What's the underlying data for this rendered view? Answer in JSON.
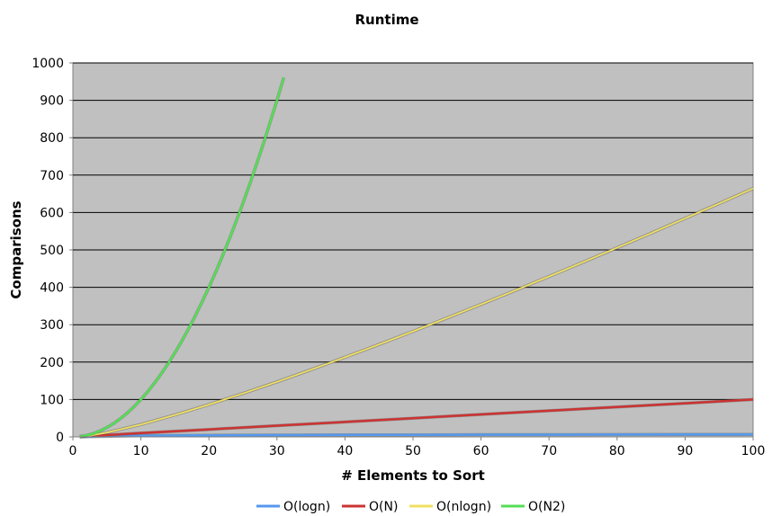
{
  "chart_data": {
    "type": "line",
    "title": "Runtime",
    "xlabel": "# Elements to Sort",
    "ylabel": "Comparisons",
    "xlim": [
      0,
      100
    ],
    "ylim": [
      0,
      1000
    ],
    "xticks": [
      "0",
      "10",
      "20",
      "30",
      "40",
      "50",
      "60",
      "70",
      "80",
      "90",
      "100"
    ],
    "yticks": [
      "0",
      "100",
      "200",
      "300",
      "400",
      "500",
      "600",
      "700",
      "800",
      "900",
      "1000"
    ],
    "grid": "horizontal",
    "plot_background": "#c0c0c0",
    "legend_position": "bottom",
    "series": [
      {
        "name": "O(logn)",
        "color": "#5599ee",
        "x": [
          1,
          10,
          20,
          30,
          40,
          50,
          60,
          70,
          80,
          90,
          100
        ],
        "y": [
          0,
          3.3,
          4.3,
          4.9,
          5.3,
          5.6,
          5.9,
          6.1,
          6.3,
          6.5,
          6.6
        ]
      },
      {
        "name": "O(N)",
        "color": "#cc3333",
        "x": [
          1,
          10,
          20,
          30,
          40,
          50,
          60,
          70,
          80,
          90,
          100
        ],
        "y": [
          1,
          10,
          20,
          30,
          40,
          50,
          60,
          70,
          80,
          90,
          100
        ]
      },
      {
        "name": "O(nlogn)",
        "color": "#f0e060",
        "x": [
          1,
          2,
          5,
          10,
          15,
          20,
          25,
          30,
          35,
          40,
          45,
          50,
          55,
          60,
          65,
          70,
          75,
          80,
          85,
          90,
          95,
          100
        ],
        "y": [
          0,
          2,
          11.6,
          33.2,
          58.6,
          86.4,
          116.1,
          147.2,
          179.5,
          212.9,
          247.1,
          282.2,
          318,
          354.4,
          391.4,
          429,
          467.1,
          505.8,
          544.8,
          584.3,
          624.1,
          664.4
        ]
      },
      {
        "name": "O(N2)",
        "color": "#55dd55",
        "x": [
          1,
          2,
          3,
          4,
          5,
          6,
          7,
          8,
          9,
          10,
          11,
          12,
          13,
          14,
          15,
          16,
          17,
          18,
          19,
          20,
          21,
          22,
          23,
          24,
          25,
          26,
          27,
          28,
          29,
          30,
          31
        ],
        "y": [
          1,
          4,
          9,
          16,
          25,
          36,
          49,
          64,
          81,
          100,
          121,
          144,
          169,
          196,
          225,
          256,
          289,
          324,
          361,
          400,
          441,
          484,
          529,
          576,
          625,
          676,
          729,
          784,
          841,
          900,
          961
        ]
      }
    ]
  }
}
